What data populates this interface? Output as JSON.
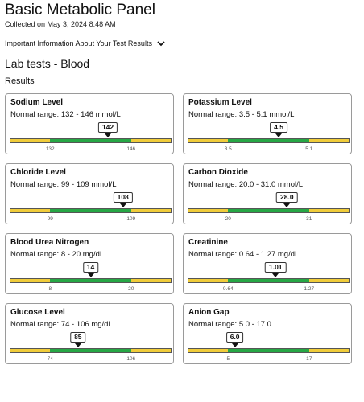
{
  "header": {
    "title": "Basic Metabolic Panel",
    "subtitle": "Collected on May 3, 2024 8:48 AM",
    "info_toggle_label": "Important Information About Your Test Results",
    "section_title": "Lab tests - Blood",
    "results_label": "Results"
  },
  "colors": {
    "in_range": "#27a745",
    "out_of_range": "#f0cc3a"
  },
  "tests": [
    {
      "name": "Sodium Level",
      "range_text": "Normal range: 132 - 146 mmol/L",
      "value_label": "142",
      "value": 142,
      "low": 132,
      "high": 146,
      "low_label": "132",
      "high_label": "146"
    },
    {
      "name": "Potassium Level",
      "range_text": "Normal range: 3.5 - 5.1 mmol/L",
      "value_label": "4.5",
      "value": 4.5,
      "low": 3.5,
      "high": 5.1,
      "low_label": "3.5",
      "high_label": "5.1"
    },
    {
      "name": "Chloride Level",
      "range_text": "Normal range: 99 - 109 mmol/L",
      "value_label": "108",
      "value": 108,
      "low": 99,
      "high": 109,
      "low_label": "99",
      "high_label": "109"
    },
    {
      "name": "Carbon Dioxide",
      "range_text": "Normal range: 20.0 - 31.0 mmol/L",
      "value_label": "28.0",
      "value": 28.0,
      "low": 20.0,
      "high": 31.0,
      "low_label": "20",
      "high_label": "31"
    },
    {
      "name": "Blood Urea Nitrogen",
      "range_text": "Normal range: 8 - 20 mg/dL",
      "value_label": "14",
      "value": 14,
      "low": 8,
      "high": 20,
      "low_label": "8",
      "high_label": "20"
    },
    {
      "name": "Creatinine",
      "range_text": "Normal range: 0.64 - 1.27 mg/dL",
      "value_label": "1.01",
      "value": 1.01,
      "low": 0.64,
      "high": 1.27,
      "low_label": "0.64",
      "high_label": "1.27"
    },
    {
      "name": "Glucose Level",
      "range_text": "Normal range: 74 - 106 mg/dL",
      "value_label": "85",
      "value": 85,
      "low": 74,
      "high": 106,
      "low_label": "74",
      "high_label": "106"
    },
    {
      "name": "Anion Gap",
      "range_text": "Normal range: 5.0 - 17.0",
      "value_label": "6.0",
      "value": 6.0,
      "low": 5.0,
      "high": 17.0,
      "low_label": "5",
      "high_label": "17"
    }
  ]
}
